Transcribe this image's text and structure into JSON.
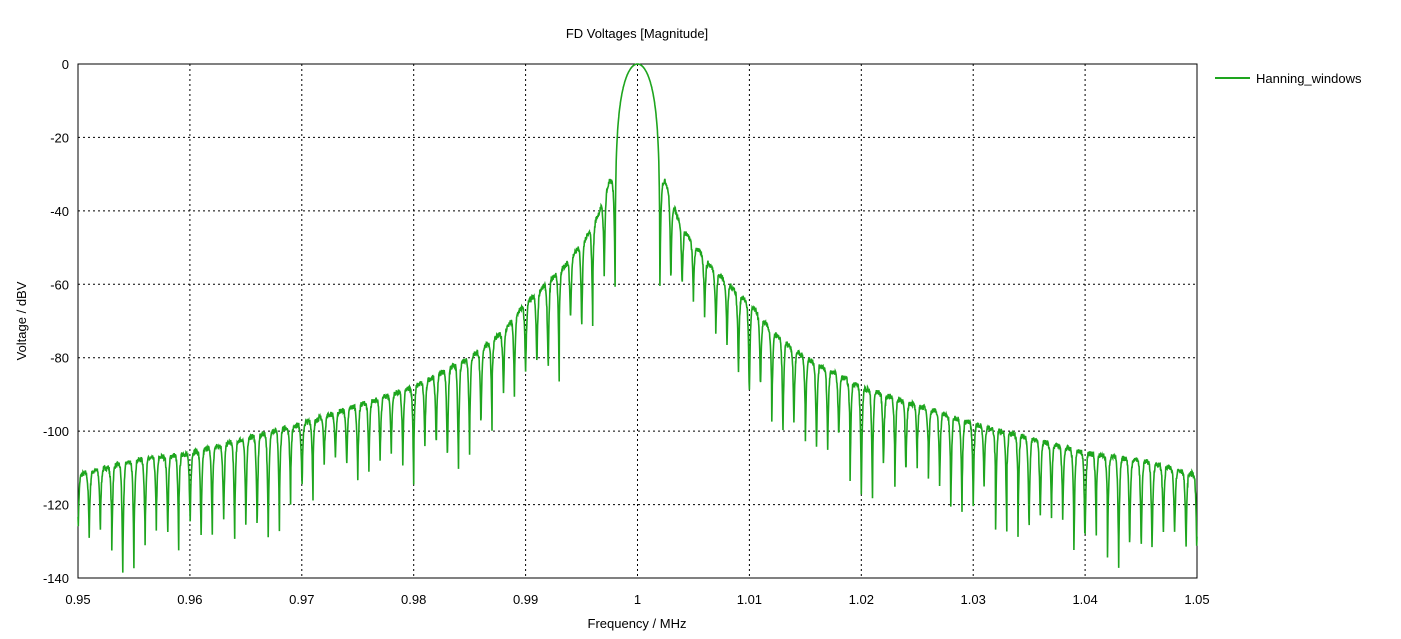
{
  "chart_data": {
    "type": "line",
    "title": "FD Voltages [Magnitude]",
    "xlabel": "Frequency / MHz",
    "ylabel": "Voltage / dBV",
    "xlim": [
      0.95,
      1.05
    ],
    "ylim": [
      -140,
      0
    ],
    "xticks": [
      0.95,
      0.96,
      0.97,
      0.98,
      0.99,
      1,
      1.01,
      1.02,
      1.03,
      1.04,
      1.05
    ],
    "xtick_labels": [
      "0.95",
      "0.96",
      "0.97",
      "0.98",
      "0.99",
      "1",
      "1.01",
      "1.02",
      "1.03",
      "1.04",
      "1.05"
    ],
    "yticks": [
      0,
      -20,
      -40,
      -60,
      -80,
      -100,
      -120,
      -140
    ],
    "ytick_labels": [
      "0",
      "-20",
      "-40",
      "-60",
      "-80",
      "-100",
      "-120",
      "-140"
    ],
    "grid": true,
    "grid_style": "dotted",
    "legend_position": "right",
    "series": [
      {
        "name": "Hanning_windows",
        "color": "#1ea51e",
        "main_lobe": {
          "center_mhz": 1.0,
          "peak_dbv": 0,
          "half_width_mhz": 0.002
        },
        "sidelobe_spacing_mhz": 0.001,
        "sidelobe_peaks": [
          {
            "offset_mhz": 0.0025,
            "dbv": -32
          },
          {
            "offset_mhz": 0.0035,
            "dbv": -41
          },
          {
            "offset_mhz": 0.0045,
            "dbv": -47
          },
          {
            "offset_mhz": 0.0055,
            "dbv": -51
          },
          {
            "offset_mhz": 0.0065,
            "dbv": -55
          },
          {
            "offset_mhz": 0.0075,
            "dbv": -58
          },
          {
            "offset_mhz": 0.0085,
            "dbv": -61
          },
          {
            "offset_mhz": 0.0095,
            "dbv": -64
          },
          {
            "offset_mhz": 0.0105,
            "dbv": -67
          },
          {
            "offset_mhz": 0.012,
            "dbv": -73
          },
          {
            "offset_mhz": 0.015,
            "dbv": -80
          },
          {
            "offset_mhz": 0.02,
            "dbv": -88
          },
          {
            "offset_mhz": 0.025,
            "dbv": -93
          },
          {
            "offset_mhz": 0.03,
            "dbv": -98
          },
          {
            "offset_mhz": 0.035,
            "dbv": -102
          },
          {
            "offset_mhz": 0.04,
            "dbv": -106
          },
          {
            "offset_mhz": 0.045,
            "dbv": -108
          },
          {
            "offset_mhz": 0.05,
            "dbv": -112
          }
        ],
        "null_depth_db": [
          12,
          30
        ]
      }
    ]
  }
}
